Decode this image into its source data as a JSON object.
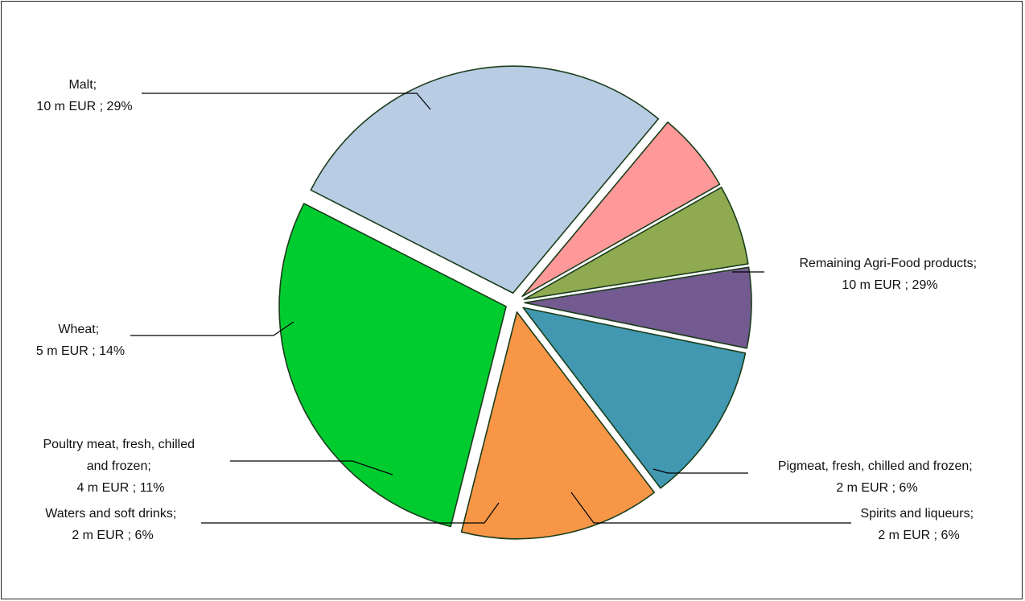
{
  "chart_data": {
    "type": "pie",
    "slices": [
      {
        "key": "remaining",
        "label": "Remaining Agri-Food products;",
        "value_text": "10 m EUR ; 29%",
        "value_m_eur": 10,
        "percent": 29,
        "color": "#b8cce4"
      },
      {
        "key": "pigmeat",
        "label": "Pigmeat, fresh, chilled and frozen;",
        "value_text": "2 m EUR ; 6%",
        "value_m_eur": 2,
        "percent": 6,
        "color": "#ff9999"
      },
      {
        "key": "spirits",
        "label": "Spirits and liqueurs;",
        "value_text": "2 m EUR ; 6%",
        "value_m_eur": 2,
        "percent": 6,
        "color": "#8faa50"
      },
      {
        "key": "waters",
        "label": "Waters and soft drinks;",
        "value_text": "2 m EUR ; 6%",
        "value_m_eur": 2,
        "percent": 6,
        "color": "#735a90"
      },
      {
        "key": "poultry",
        "label": "Poultry meat, fresh, chilled and frozen;",
        "value_text": "4 m EUR ; 11%",
        "value_m_eur": 4,
        "percent": 11,
        "color": "#4198b0"
      },
      {
        "key": "wheat",
        "label": "Wheat;",
        "value_text": "5 m EUR ; 14%",
        "value_m_eur": 5,
        "percent": 14,
        "color": "#f79646"
      },
      {
        "key": "malt",
        "label": "Malt;",
        "value_text": "10 m EUR ; 29%",
        "value_m_eur": 10,
        "percent": 29,
        "color": "#00cc30"
      }
    ]
  }
}
